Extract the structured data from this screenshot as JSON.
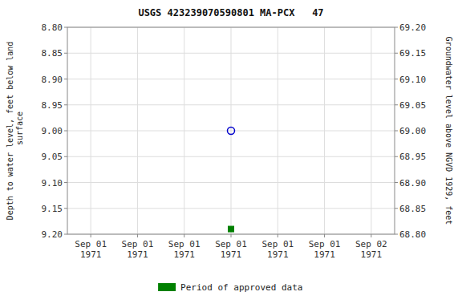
{
  "chart_data": {
    "type": "scatter",
    "title": "USGS 423239070590801 MA-PCX   47",
    "y_label": "Depth to water level, feet below land\n surface",
    "y2_label": "Groundwater level above NGVD 1929, feet",
    "categories": [
      "Sep 01\n1971",
      "Sep 01\n1971",
      "Sep 01\n1971",
      "Sep 01\n1971",
      "Sep 01\n1971",
      "Sep 01\n1971",
      "Sep 02\n1971"
    ],
    "series": [
      {
        "color": "#0000cc",
        "marker": "circle-open",
        "values": [
          null,
          null,
          null,
          9.0,
          null,
          null,
          null
        ]
      },
      {
        "name": "Period of approved data",
        "color": "#008000",
        "marker": "square",
        "values": [
          null,
          null,
          null,
          9.19,
          null,
          null,
          null
        ]
      }
    ],
    "ylim": [
      9.2,
      8.8
    ],
    "yticks": [
      {
        "value": 8.8,
        "label": "8.80"
      },
      {
        "value": 8.85,
        "label": "8.85"
      },
      {
        "value": 8.9,
        "label": "8.90"
      },
      {
        "value": 8.95,
        "label": "8.95"
      },
      {
        "value": 9.0,
        "label": "9.00"
      },
      {
        "value": 9.05,
        "label": "9.05"
      },
      {
        "value": 9.1,
        "label": "9.10"
      },
      {
        "value": 9.15,
        "label": "9.15"
      },
      {
        "value": 9.2,
        "label": "9.20"
      }
    ],
    "y2lim": [
      68.8,
      69.2
    ],
    "y2ticks": [
      {
        "value": 69.2,
        "label": "69.20"
      },
      {
        "value": 69.15,
        "label": "69.15"
      },
      {
        "value": 69.1,
        "label": "69.10"
      },
      {
        "value": 69.05,
        "label": "69.05"
      },
      {
        "value": 69.0,
        "label": "69.00"
      },
      {
        "value": 68.95,
        "label": "68.95"
      },
      {
        "value": 68.9,
        "label": "68.90"
      },
      {
        "value": 68.85,
        "label": "68.85"
      },
      {
        "value": 68.8,
        "label": "68.80"
      }
    ],
    "grid": true,
    "legend": "bottom"
  }
}
